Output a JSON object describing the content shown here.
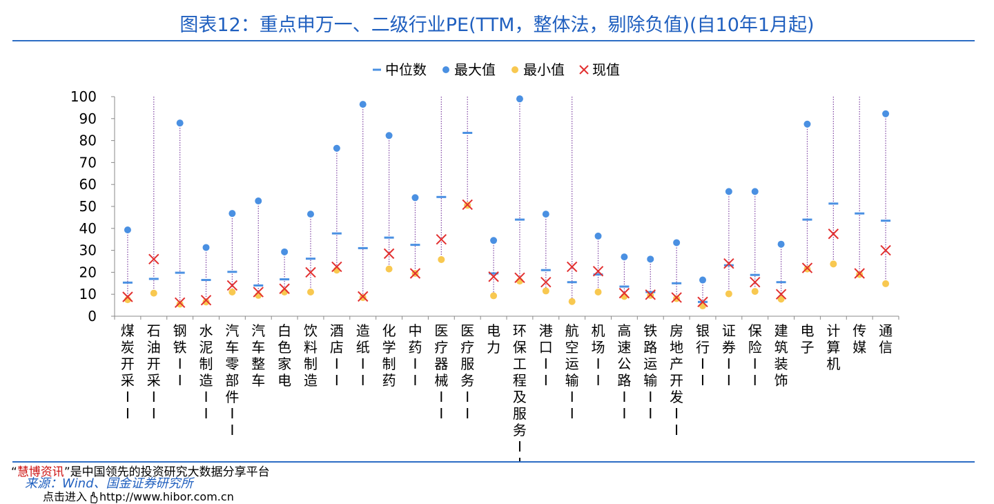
{
  "title": "图表12：重点申万一、二级行业PE(TTM，整体法，剔除负值)(自10年1月起)",
  "legend": {
    "median": "中位数",
    "max": "最大值",
    "min": "最小值",
    "current": "现值"
  },
  "colors": {
    "accent": "#1f5fbf",
    "median": "#4a90e2",
    "max": "#4a90e2",
    "min": "#f8c850",
    "current": "#e23030",
    "range_line": "#7b3fa0"
  },
  "footer": {
    "promo_prefix": "“",
    "promo_highlight": "慧博资讯",
    "promo_suffix": "”是中国领先的投资研究大数据分享平台",
    "source": "来源：Wind、国金证券研究所",
    "click_text": "点击进入",
    "url": "http://www.hibor.com.cn",
    "hand_icon": "pointing-hand-icon"
  },
  "chart_data": {
    "type": "scatter",
    "ylim": [
      0,
      100
    ],
    "yticks": [
      "0",
      "10",
      "20",
      "30",
      "40",
      "50",
      "60",
      "70",
      "80",
      "90",
      "100"
    ],
    "legend_position": "top-center",
    "categories": [
      "煤炭开采II",
      "石油开采II",
      "钢铁II",
      "水泥制造II",
      "汽车零部件II",
      "汽车整车",
      "白色家电",
      "饮料制造",
      "酒店II",
      "造纸II",
      "化学制药",
      "中药II",
      "医疗器械II",
      "医疗服务II",
      "电力",
      "环保工程及服务II",
      "港口II",
      "航空运输II",
      "机场II",
      "高速公路II",
      "铁路运输II",
      "房地产开发II",
      "银行II",
      "证券II",
      "保险II",
      "建筑装饰",
      "电子",
      "计算机",
      "传媒",
      "通信"
    ],
    "series": [
      {
        "name": "中位数",
        "values": [
          15.3,
          17.0,
          19.8,
          16.5,
          20.2,
          14.0,
          16.8,
          26.2,
          37.7,
          31.0,
          35.8,
          32.5,
          54.3,
          83.5,
          19.5,
          44.0,
          21.0,
          15.5,
          19.0,
          13.5,
          11.0,
          15.0,
          6.5,
          23.2,
          18.8,
          15.5,
          44.0,
          51.3,
          46.8,
          43.5
        ]
      },
      {
        "name": "最大值",
        "values": [
          39.3,
          100,
          88.0,
          31.3,
          46.8,
          52.5,
          29.3,
          46.5,
          76.5,
          96.5,
          82.3,
          54.0,
          100,
          100,
          34.5,
          99.0,
          46.5,
          100,
          36.5,
          27.0,
          26.0,
          33.5,
          16.5,
          56.8,
          56.8,
          32.8,
          87.5,
          100,
          100,
          92.2
        ]
      },
      {
        "name": "最小值",
        "values": [
          7.5,
          10.5,
          5.5,
          6.5,
          11.0,
          9.5,
          11.0,
          11.0,
          21.0,
          8.5,
          21.5,
          19.5,
          25.8,
          50.5,
          9.3,
          16.0,
          11.5,
          6.7,
          11.0,
          9.0,
          9.5,
          8.0,
          4.7,
          10.2,
          11.3,
          7.8,
          21.5,
          23.8,
          19.0,
          14.8
        ]
      },
      {
        "name": "现值",
        "values": [
          8.8,
          26.0,
          6.2,
          7.3,
          14.0,
          11.0,
          12.5,
          20.0,
          22.5,
          9.0,
          28.5,
          19.5,
          35.0,
          50.8,
          18.0,
          17.5,
          15.5,
          22.5,
          20.5,
          10.5,
          9.8,
          8.5,
          6.5,
          24.0,
          15.5,
          10.0,
          22.0,
          37.5,
          19.5,
          30.0
        ]
      }
    ]
  }
}
